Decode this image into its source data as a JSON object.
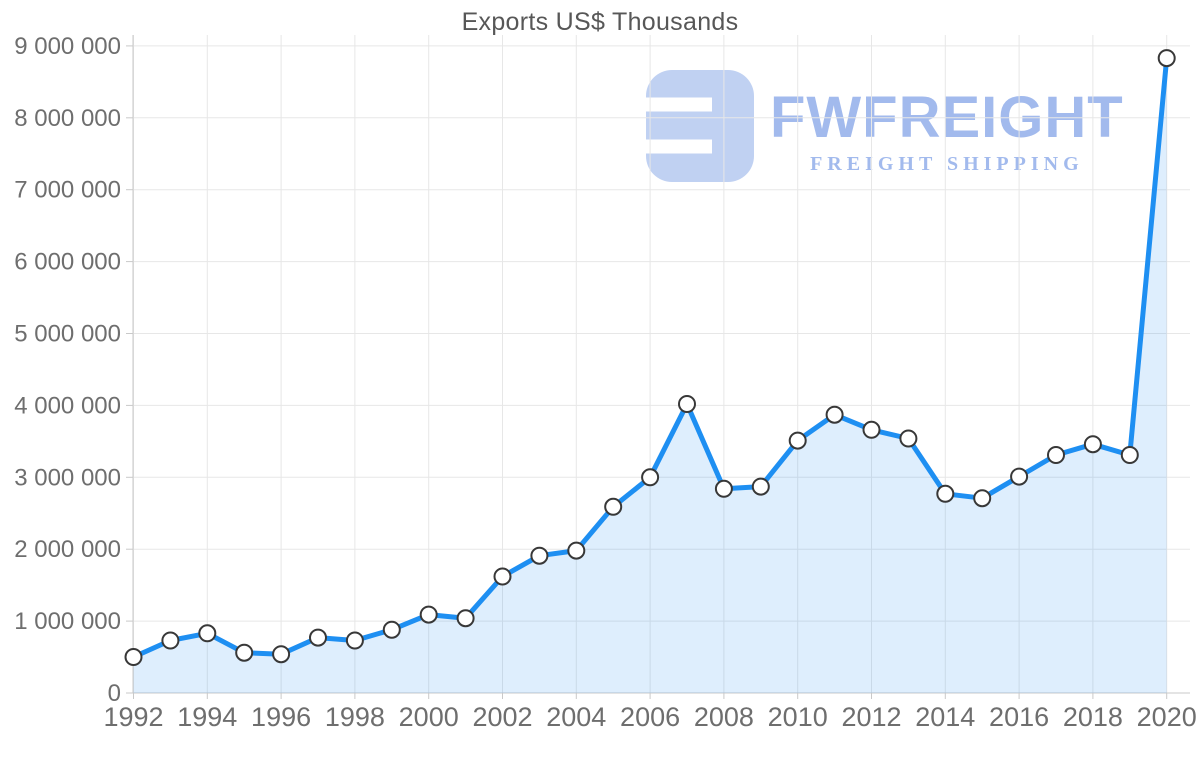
{
  "page": {
    "background": "#ffffff"
  },
  "watermark": {
    "brand": "FWFREIGHT",
    "tagline": "FREIGHT SHIPPING",
    "color": "#b2c7ef",
    "icon": "fwfreight-logo-mark"
  },
  "chart_data": {
    "type": "line",
    "subtype": "area-line-with-markers",
    "title": "Exports US$ Thousands",
    "xlabel": "",
    "ylabel": "",
    "x": [
      1992,
      1993,
      1994,
      1995,
      1996,
      1997,
      1998,
      1999,
      2000,
      2001,
      2002,
      2003,
      2004,
      2005,
      2006,
      2007,
      2008,
      2009,
      2010,
      2011,
      2012,
      2013,
      2014,
      2015,
      2016,
      2017,
      2018,
      2019,
      2020
    ],
    "values": [
      500000,
      730000,
      830000,
      560000,
      540000,
      770000,
      730000,
      880000,
      1090000,
      1040000,
      1620000,
      1910000,
      1980000,
      2590000,
      3000000,
      4020000,
      2840000,
      2870000,
      3510000,
      3870000,
      3660000,
      3540000,
      2770000,
      2710000,
      3010000,
      3310000,
      3460000,
      3310000,
      8830000
    ],
    "series": [
      {
        "name": "Exports US$ Thousands"
      }
    ],
    "ylim": [
      0,
      9000000
    ],
    "y_tick_step": 1000000,
    "y_tick_labels": [
      "0",
      "1 000 000",
      "2 000 000",
      "3 000 000",
      "4 000 000",
      "5 000 000",
      "6 000 000",
      "7 000 000",
      "8 000 000",
      "9 000 000"
    ],
    "x_tick_labels": [
      "1992",
      "1994",
      "1996",
      "1998",
      "2000",
      "2002",
      "2004",
      "2006",
      "2008",
      "2010",
      "2012",
      "2014",
      "2016",
      "2018",
      "2020"
    ],
    "grid": true,
    "legend": "none",
    "colors": {
      "line": "#1e8ff2",
      "fill": "rgba(31,143,241,0.15)",
      "marker_fill": "#ffffff",
      "marker_stroke": "#383838",
      "grid": "#e7e7e7",
      "axis": "#c9c9c9",
      "labels": "#6e6e6e",
      "title": "#575757"
    }
  }
}
